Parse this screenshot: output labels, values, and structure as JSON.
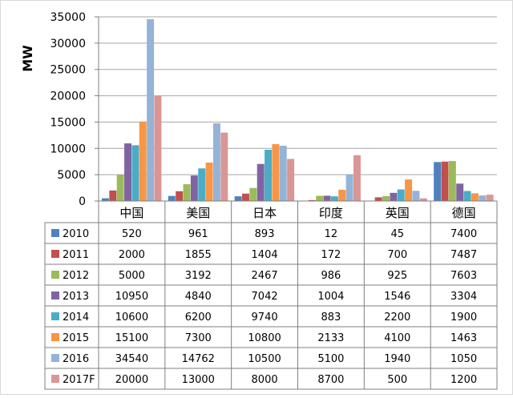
{
  "chart_data": {
    "type": "bar",
    "ylabel": "MW",
    "ylim": [
      0,
      35000
    ],
    "yticks": [
      0,
      5000,
      10000,
      15000,
      20000,
      25000,
      30000,
      35000
    ],
    "grid": true,
    "legend": "table-left",
    "categories": [
      "中国",
      "美国",
      "日本",
      "印度",
      "英国",
      "德国"
    ],
    "series": [
      {
        "name": "2010",
        "color": "#4f81bd",
        "values": [
          520,
          961,
          893,
          12,
          45,
          7400
        ]
      },
      {
        "name": "2011",
        "color": "#c0504d",
        "values": [
          2000,
          1855,
          1404,
          172,
          700,
          7487
        ]
      },
      {
        "name": "2012",
        "color": "#9bbb59",
        "values": [
          5000,
          3192,
          2467,
          986,
          925,
          7603
        ]
      },
      {
        "name": "2013",
        "color": "#8064a2",
        "values": [
          10950,
          4840,
          7042,
          1004,
          1546,
          3304
        ]
      },
      {
        "name": "2014",
        "color": "#4bacc6",
        "values": [
          10600,
          6200,
          9740,
          883,
          2200,
          1900
        ]
      },
      {
        "name": "2015",
        "color": "#f79646",
        "values": [
          15100,
          7300,
          10800,
          2133,
          4100,
          1463
        ]
      },
      {
        "name": "2016",
        "color": "#95b3d7",
        "values": [
          34540,
          14762,
          10500,
          5100,
          1940,
          1050
        ]
      },
      {
        "name": "2017F",
        "color": "#d99694",
        "values": [
          20000,
          13000,
          8000,
          8700,
          500,
          1200
        ]
      }
    ]
  }
}
